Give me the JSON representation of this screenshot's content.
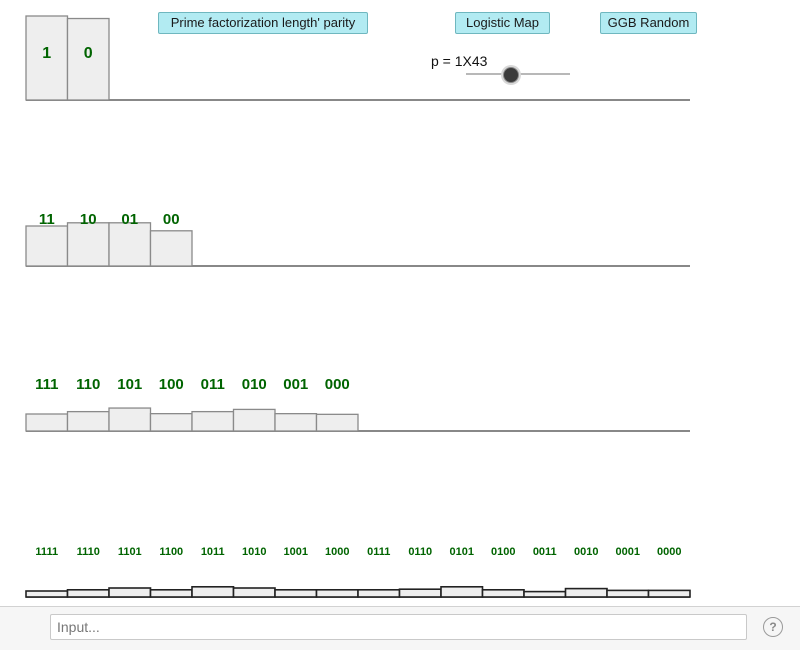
{
  "buttons": {
    "prime": "Prime factorization length' parity",
    "logistic": "Logistic Map",
    "random": "GGB Random"
  },
  "slider": {
    "label": "p = 1X43",
    "value": 0.43
  },
  "input": {
    "placeholder": "Input..."
  },
  "help_icon": "question-mark",
  "colors": {
    "label_green": "#006400",
    "button_bg": "#b2ebf2",
    "bar_fill": "#eeeeee"
  },
  "chart_data": [
    {
      "type": "bar",
      "categories": [
        "1",
        "0"
      ],
      "values": [
        1.0,
        0.97
      ]
    },
    {
      "type": "bar",
      "categories": [
        "11",
        "10",
        "01",
        "00"
      ],
      "values": [
        1.0,
        1.08,
        1.08,
        0.88
      ]
    },
    {
      "type": "bar",
      "categories": [
        "111",
        "110",
        "101",
        "100",
        "011",
        "010",
        "001",
        "000"
      ],
      "values": [
        1.0,
        1.14,
        1.35,
        1.02,
        1.14,
        1.27,
        1.02,
        0.98
      ]
    },
    {
      "type": "bar",
      "categories": [
        "1111",
        "1110",
        "1101",
        "1100",
        "1011",
        "1010",
        "1001",
        "1000",
        "0111",
        "0110",
        "0101",
        "0100",
        "0011",
        "0010",
        "0001",
        "0000"
      ],
      "values": [
        1.0,
        1.2,
        1.5,
        1.2,
        1.7,
        1.5,
        1.2,
        1.2,
        1.2,
        1.3,
        1.7,
        1.2,
        0.9,
        1.4,
        1.1,
        1.1
      ]
    }
  ]
}
